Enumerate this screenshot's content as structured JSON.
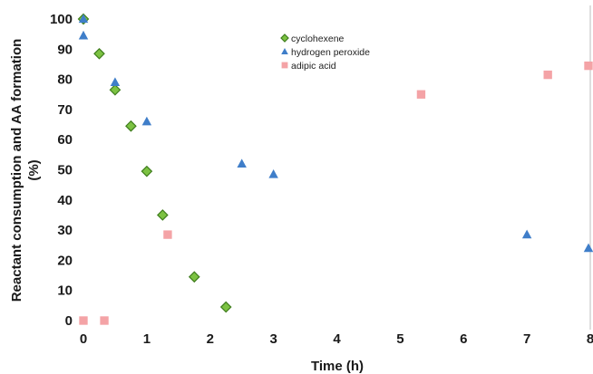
{
  "chart_data": {
    "type": "scatter",
    "xlabel": "Time (h)",
    "ylabel": [
      "Reactant consumption and AA formation",
      "(%)"
    ],
    "xlim": [
      0,
      8
    ],
    "ylim": [
      0,
      100
    ],
    "x_ticks": [
      0,
      1,
      2,
      3,
      4,
      5,
      6,
      7,
      8
    ],
    "y_ticks": [
      0,
      10,
      20,
      30,
      40,
      50,
      60,
      70,
      80,
      90,
      100
    ],
    "grid": false,
    "legend_position": "top-center",
    "series": [
      {
        "name": "cyclohexene",
        "marker": "diamond",
        "color": "#7cc242",
        "points": [
          [
            0,
            100
          ],
          [
            0.25,
            88.5
          ],
          [
            0.5,
            76.5
          ],
          [
            0.75,
            64.5
          ],
          [
            1,
            49.5
          ],
          [
            1.25,
            35
          ],
          [
            1.75,
            14.5
          ],
          [
            2.25,
            4.5
          ]
        ]
      },
      {
        "name": "hydrogen peroxide",
        "marker": "triangle",
        "color": "#3f7ec9",
        "points": [
          [
            0,
            100
          ],
          [
            0,
            94.5
          ],
          [
            0.5,
            79
          ],
          [
            1,
            66
          ],
          [
            2.5,
            52
          ],
          [
            3,
            48.5
          ],
          [
            7,
            28.5
          ],
          [
            8,
            24
          ]
        ]
      },
      {
        "name": "adipic acid",
        "marker": "square",
        "color": "#f4a3a6",
        "points": [
          [
            0,
            0
          ],
          [
            0.33,
            0
          ],
          [
            1.33,
            28.5
          ],
          [
            5.33,
            75
          ],
          [
            7.33,
            81.5
          ],
          [
            8,
            84.5
          ]
        ]
      }
    ]
  }
}
